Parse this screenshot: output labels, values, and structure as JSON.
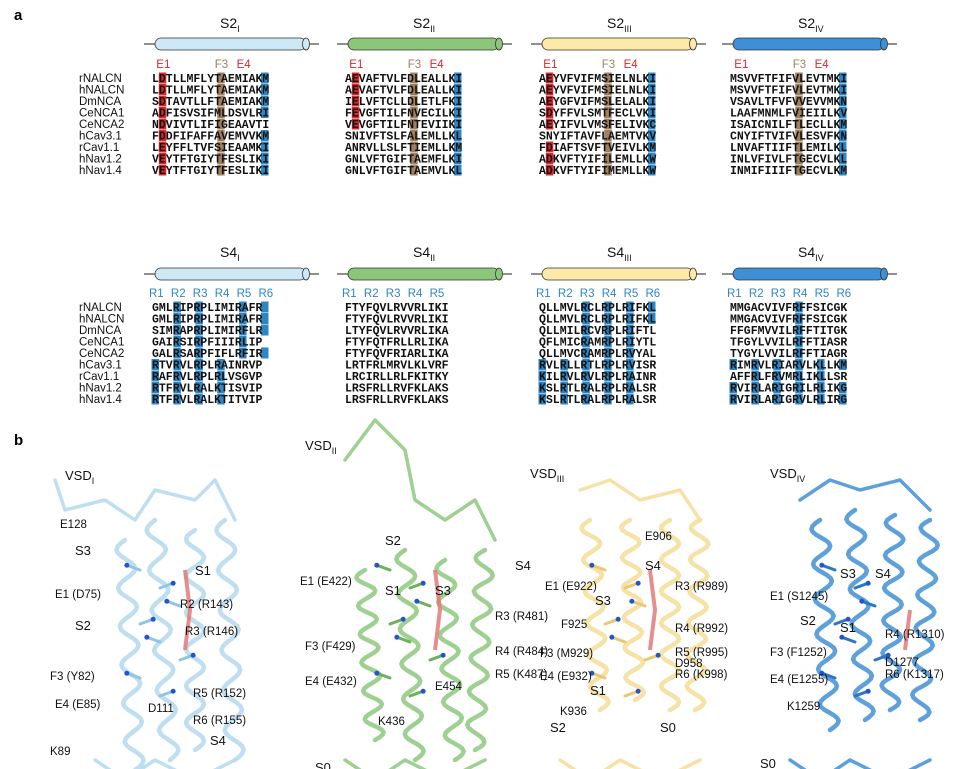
{
  "panel_labels": {
    "a": "a",
    "b": "b"
  },
  "colors": {
    "acid": "#d9282c",
    "basic": "#2f86c4",
    "hydrophobic": "#9e8061",
    "helix": [
      "#cfe8f5",
      "#8cc678",
      "#fde9a8",
      "#3d8fd6"
    ],
    "struct": [
      "#b8dcef",
      "#94cb85",
      "#f6df9b",
      "#4d96d5"
    ]
  },
  "species": [
    "rNALCN",
    "hNALCN",
    "DmNCA",
    "CeNCA1",
    "CeNCA2",
    "hCav3.1",
    "rCav1.1",
    "hNav1.2",
    "hNav1.4"
  ],
  "s2_blocks": [
    {
      "title": "S2",
      "sub": "I",
      "labels": [
        "E1",
        "F3",
        "E4"
      ],
      "seqs": [
        "LDTLLMFLYTAEMIAKM",
        "LDTLLMFLYTAEMIAKM",
        "SDTAVTLLFTAEMIAKM",
        "ADFISVSIFMLDSVLRI",
        "NDVIVTLIFIGEAAVTI",
        "FDDFIFAFFAVEMVVKM",
        "LEYFFLTVFSIEAAMKI",
        "VEYTFTGIYTFESLIKI",
        "VEYTFTGIYTFESLIKI"
      ]
    },
    {
      "title": "S2",
      "sub": "II",
      "labels": [
        "E1",
        "F3",
        "E4"
      ],
      "seqs": [
        "AEVAFTVLFDLEALLKI",
        "AEVAFTVLFDLEALLKI",
        "IELVFTCLLDLETLFKI",
        "FEVGFTILFNVECILKI",
        "VEVGFTILFNTEVIIKI",
        "SNIVFTSLFALEMLLKL",
        "ANRVLLSLFTIEMLLKM",
        "GNLVFTGIFTAEMFLKI",
        "GNLVFTGIFTAEMVLKL"
      ]
    },
    {
      "title": "S2",
      "sub": "III",
      "labels": [
        "E1",
        "F3",
        "E4"
      ],
      "seqs": [
        "AEYVFVIFMSIELNLKI",
        "AEYVFVIFMSIELNLKI",
        "AEYGFVIFMSLELALKI",
        "SDYFFVLSMTFECLVKI",
        "AEYIFVLVMSFELIVKC",
        "SNYIFTAVFLAEMTVKV",
        "FDIAFTSVFTVEIVLKM",
        "ADKVFTYIFILEMLLKW",
        "ADKVFTYIFIMEMLLKW"
      ]
    },
    {
      "title": "S2",
      "sub": "IV",
      "labels": [
        "E1",
        "F3",
        "E4"
      ],
      "seqs": [
        "MSVVFTFIFVLEVTMKI",
        "MSVVFTFIFVLEVTMKI",
        "VSAVLTFVFVVEVVMKN",
        "LAAFMNMLFVIEIILKV",
        "ISAICNILFTLECLLKM",
        "CNYIFTVIFVLESVFKN",
        "LNVAFTIIFTLEMILKL",
        "INLVFIVLFTGECVLKL",
        "INMIFIIIFTGECVLKM"
      ]
    }
  ],
  "s4_blocks": [
    {
      "title": "S4",
      "sub": "I",
      "labels": [
        "R1",
        "R2",
        "R3",
        "R4",
        "R5",
        "R6"
      ],
      "seqs": [
        "GMLRIPRPLIMIRAFR",
        "GMLRIPRPLIMIRAFR",
        "SIMRAPRPLIMIRFLR",
        "GAIRSIRPFIIIRLIP",
        "GALRSARPFIFLRFIR",
        "RTVRVLRPLRAINRVP",
        "RAFRVLRPLRLVSGVP",
        "RTFRVLRALKTISVIP",
        "RTFRVLRALKTITVIP"
      ]
    },
    {
      "title": "S4",
      "sub": "II",
      "labels": [
        "R1",
        "R2",
        "R3",
        "R4",
        "R5"
      ],
      "seqs": [
        "FTYFQVLRVVRLIKI",
        "FTYFQVLRVVRLIKI",
        "LTYFQVLRVVRLIKA",
        "FTYFQTFRLLRLIKA",
        "FTYFQVFRIARLIKA",
        "LRTFRLMRVLKLVRF",
        "LRCIRLLRLFKITKY",
        "LRSFRLLRVFKLAKS",
        "LRSFRLLRVFKLAKS"
      ]
    },
    {
      "title": "S4",
      "sub": "III",
      "labels": [
        "R1",
        "R2",
        "R3",
        "R4",
        "R5",
        "R6"
      ],
      "seqs": [
        "QLLMVLRCLRPLRIFKL",
        "QLLMVLRCLRPLRIFKL",
        "QLLMILRCVRPLRIFTL",
        "QFLMICRAMRPLRIYTL",
        "QLLMVCRAMRPLRVYAL",
        "RVLRLLRTLRPLRVISR",
        "KILRVLRVLRPLRAINR",
        "KSLRTLRALRPLRALSR",
        "KSLRTLRALRPLRALSR"
      ]
    },
    {
      "title": "S4",
      "sub": "IV",
      "labels": [
        "R1",
        "R2",
        "R3",
        "R4",
        "R5",
        "R6"
      ],
      "seqs": [
        "MMGACVIVFRFFSICGK",
        "MMGACVIVFRFFSICGK",
        "FFGFMVVILRFFTITGK",
        "TFGYLVVILRFFTIASR",
        "TYGYLVVILRFFTIAGR",
        "RIMRVLRIARVLKLLKM",
        "AFFRLFRVMRLIKLLSR",
        "RVIRLARIGRILRLIKG",
        "RVIRLARIGRVLRLIRG"
      ]
    }
  ],
  "vsd_titles": [
    {
      "main": "VSD",
      "sub": "I"
    },
    {
      "main": "VSD",
      "sub": "II"
    },
    {
      "main": "VSD",
      "sub": "III"
    },
    {
      "main": "VSD",
      "sub": "IV"
    }
  ],
  "vsd_labels": [
    [
      "E128",
      "S3",
      "S1",
      "E1 (D75)",
      "R2 (R143)",
      "S2",
      "R3 (R146)",
      "F3 (Y82)",
      "E4 (E85)",
      "R5 (R152)",
      "D111",
      "R6 (R155)",
      "K89",
      "S4"
    ],
    [
      "S2",
      "S4",
      "E1 (E422)",
      "S1",
      "S3",
      "R3 (R481)",
      "F3 (F429)",
      "R4 (R484)",
      "E4 (E432)",
      "E454",
      "R5 (K487)",
      "K436",
      "S0"
    ],
    [
      "E906",
      "S4",
      "E1 (E922)",
      "R3 (R989)",
      "S3",
      "F925",
      "R4 (R992)",
      "F3 (M929)",
      "R5 (R995)",
      "D958",
      "E4 (E932)",
      "R6 (K998)",
      "S1",
      "K936",
      "S2",
      "S0"
    ],
    [
      "S3",
      "S4",
      "E1 (S1245)",
      "S2",
      "S1",
      "R4 (R1310)",
      "F3 (F1252)",
      "D1277",
      "E4 (E1255)",
      "R6 (K1317)",
      "K1259",
      "S0"
    ]
  ]
}
